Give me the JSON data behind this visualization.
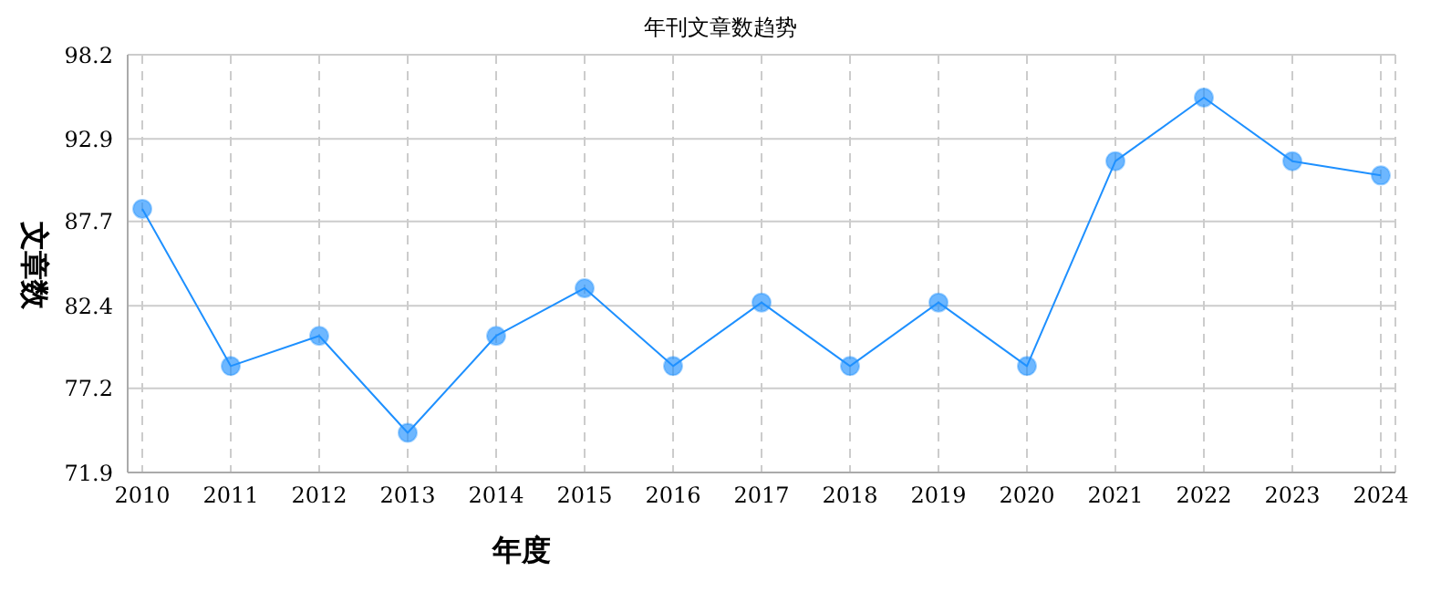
{
  "chart_data": {
    "type": "line",
    "title": "年刊文章数趋势",
    "xlabel": "年度",
    "ylabel": "文章数",
    "categories": [
      "2010",
      "2011",
      "2012",
      "2013",
      "2014",
      "2015",
      "2016",
      "2017",
      "2018",
      "2019",
      "2020",
      "2021",
      "2022",
      "2023",
      "2024"
    ],
    "series": [
      {
        "color": "#1e90ff",
        "values": [
          88.5,
          78.6,
          80.5,
          74.4,
          80.5,
          83.5,
          78.6,
          82.6,
          78.6,
          82.6,
          78.6,
          91.5,
          95.5,
          91.5,
          90.6
        ]
      }
    ],
    "ylim": [
      71.9,
      98.2
    ],
    "yticks": [
      71.9,
      77.2,
      82.4,
      87.7,
      92.9,
      98.2
    ],
    "grid": true,
    "marker": "circle",
    "line_style": "solid"
  }
}
